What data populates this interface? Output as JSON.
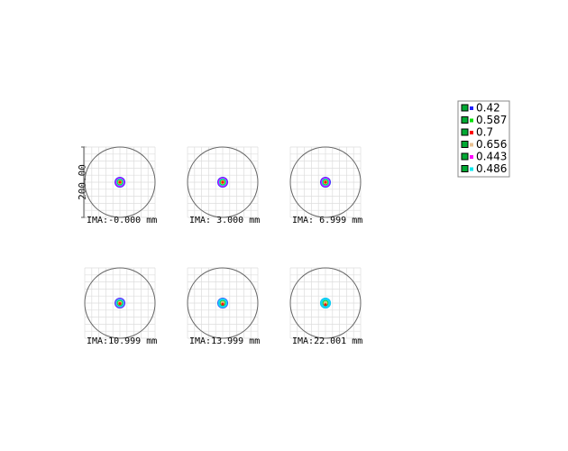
{
  "scale_label": "200.00",
  "panels": [
    {
      "label": "IMA:-0.000 mm"
    },
    {
      "label": "IMA: 3.000 mm"
    },
    {
      "label": "IMA: 6.999 mm"
    },
    {
      "label": "IMA:10.999 mm"
    },
    {
      "label": "IMA:13.999 mm"
    },
    {
      "label": "IMA:22.001 mm"
    }
  ],
  "legend": {
    "entries": [
      {
        "label": "0.42",
        "color": "#2020ff"
      },
      {
        "label": "0.587",
        "color": "#00e000"
      },
      {
        "label": "0.7",
        "color": "#ff0000"
      },
      {
        "label": "0.656",
        "color": "#e8c090"
      },
      {
        "label": "0.443",
        "color": "#ff00ff"
      },
      {
        "label": "0.486",
        "color": "#00e8f0"
      }
    ]
  }
}
